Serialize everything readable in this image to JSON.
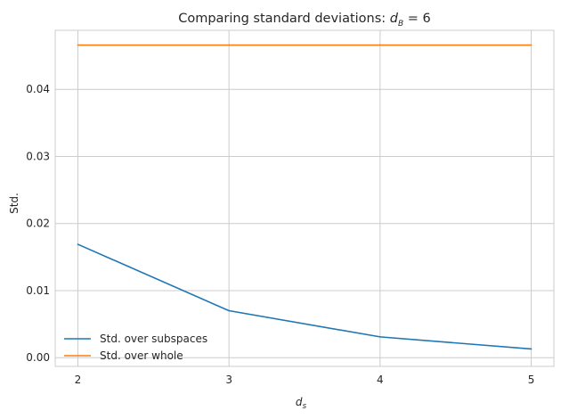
{
  "chart_data": {
    "type": "line",
    "title": "Comparing standard deviations: ",
    "title_math": {
      "base": "d",
      "sub": "B",
      "suffix": " = 6"
    },
    "xlabel_math": {
      "base": "d",
      "sub": "s"
    },
    "ylabel": "Std.",
    "x": [
      2,
      3,
      4,
      5
    ],
    "xticks": [
      "2",
      "3",
      "4",
      "5"
    ],
    "yticks": [
      "0.00",
      "0.01",
      "0.02",
      "0.03",
      "0.04"
    ],
    "ytick_values": [
      0.0,
      0.01,
      0.02,
      0.03,
      0.04
    ],
    "xlim": [
      1.85,
      5.15
    ],
    "ylim": [
      -0.0013,
      0.0488
    ],
    "grid": true,
    "legend_position": "lower-left",
    "series": [
      {
        "name": "Std. over subspaces",
        "color": "#1f77b4",
        "values": [
          0.0169,
          0.007,
          0.0031,
          0.0013
        ]
      },
      {
        "name": "Std. over whole",
        "color": "#ff7f0e",
        "values": [
          0.0466,
          0.0466,
          0.0466,
          0.0466
        ]
      }
    ]
  }
}
